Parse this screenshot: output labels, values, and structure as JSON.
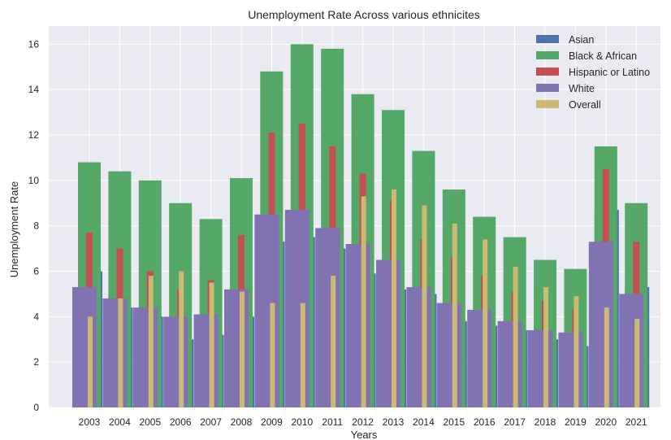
{
  "colors": {
    "background": "#ffffff",
    "plot_background": "#eaeaf2",
    "grid": "#ffffff",
    "text": "#262626"
  },
  "chart_data": {
    "type": "bar",
    "title": "Unemployment Rate Across various ethnicites",
    "xlabel": "Years",
    "ylabel": "Unemployment Rate",
    "ylim": [
      0,
      16.8
    ],
    "yticks": [
      0,
      2,
      4,
      6,
      8,
      10,
      12,
      14,
      16
    ],
    "grid": true,
    "legend_position": "top-right",
    "categories": [
      "2003",
      "2004",
      "2005",
      "2006",
      "2007",
      "2008",
      "2009",
      "2010",
      "2011",
      "2012",
      "2013",
      "2014",
      "2015",
      "2016",
      "2017",
      "2018",
      "2019",
      "2020",
      "2021"
    ],
    "series": [
      {
        "name": "Asian",
        "color": "#4c72b0",
        "values": [
          6.0,
          4.4,
          4.0,
          3.0,
          3.2,
          4.0,
          7.3,
          7.5,
          7.0,
          5.9,
          5.2,
          5.0,
          3.8,
          3.6,
          3.4,
          3.0,
          2.7,
          8.7,
          5.3
        ]
      },
      {
        "name": "Black & African",
        "color": "#55a868",
        "values": [
          10.8,
          10.4,
          10.0,
          9.0,
          8.3,
          10.1,
          14.8,
          16.0,
          15.8,
          13.8,
          13.1,
          11.3,
          9.6,
          8.4,
          7.5,
          6.5,
          6.1,
          11.5,
          9.0
        ]
      },
      {
        "name": "Hispanic or Latino",
        "color": "#c44e52",
        "values": [
          7.7,
          7.0,
          6.0,
          5.2,
          5.6,
          7.6,
          12.1,
          12.5,
          11.5,
          10.3,
          9.1,
          7.4,
          6.6,
          5.8,
          5.1,
          4.7,
          4.3,
          10.5,
          7.3
        ]
      },
      {
        "name": "White",
        "color": "#8172b2",
        "values": [
          5.3,
          4.8,
          4.4,
          4.0,
          4.1,
          5.2,
          8.5,
          8.7,
          7.9,
          7.2,
          6.5,
          5.3,
          4.6,
          4.3,
          3.8,
          3.4,
          3.3,
          7.3,
          5.0
        ]
      },
      {
        "name": "Overall",
        "color": "#ccb974",
        "values": [
          4.0,
          4.8,
          5.8,
          6.0,
          5.5,
          5.1,
          4.6,
          4.6,
          5.8,
          9.3,
          9.6,
          8.9,
          8.1,
          7.4,
          6.2,
          5.3,
          4.9,
          4.4,
          3.9
        ]
      }
    ]
  }
}
